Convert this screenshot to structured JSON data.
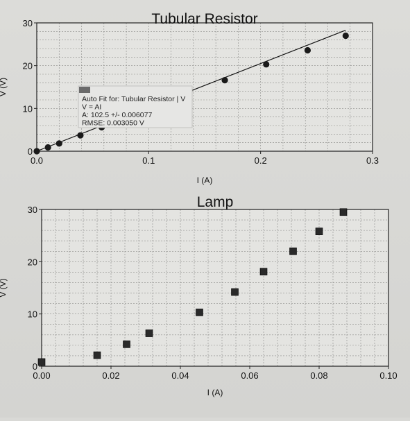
{
  "chart_data": [
    {
      "type": "scatter",
      "title": "Tubular Resistor",
      "xlabel": "I (A)",
      "ylabel": "V (V)",
      "xlim": [
        0.0,
        0.3
      ],
      "ylim": [
        0,
        30
      ],
      "x_ticks": [
        0.0,
        0.1,
        0.2,
        0.3
      ],
      "x_tick_labels": [
        "0.0",
        "0.1",
        "0.2",
        "0.3"
      ],
      "y_ticks": [
        0,
        10,
        20,
        30
      ],
      "y_tick_labels": [
        "0",
        "10",
        "20",
        "30"
      ],
      "grid": true,
      "marker": "circle",
      "series": [
        {
          "x": [
            0.0,
            0.01,
            0.02,
            0.039,
            0.058,
            0.168,
            0.205,
            0.242,
            0.276
          ],
          "y": [
            0.0,
            0.9,
            1.8,
            3.7,
            5.6,
            16.6,
            20.3,
            23.6,
            27.0
          ]
        }
      ],
      "fit_line": {
        "slope": 102.5,
        "intercept": 0.0,
        "x_range": [
          0.0,
          0.276
        ]
      },
      "fit_box": {
        "title": "Auto Fit for: Tubular Resistor | V",
        "equation": "V = AI",
        "param": "A: 102.5 +/- 0.006077",
        "rmse": "RMSE: 0.003050 V"
      }
    },
    {
      "type": "scatter",
      "title": "Lamp",
      "xlabel": "I (A)",
      "ylabel": "V (V)",
      "xlim": [
        0.0,
        0.1
      ],
      "ylim": [
        0,
        30
      ],
      "x_ticks": [
        0.0,
        0.02,
        0.04,
        0.06,
        0.08,
        0.1
      ],
      "x_tick_labels": [
        "0.00",
        "0.02",
        "0.04",
        "0.06",
        "0.08",
        "0.10"
      ],
      "y_ticks": [
        0,
        10,
        20,
        30
      ],
      "y_tick_labels": [
        "0",
        "10",
        "20",
        "30"
      ],
      "grid": true,
      "marker": "square",
      "series": [
        {
          "x": [
            0.0,
            0.016,
            0.0245,
            0.031,
            0.0455,
            0.0557,
            0.064,
            0.0725,
            0.08,
            0.087
          ],
          "y": [
            0.8,
            2.1,
            4.2,
            6.3,
            10.3,
            14.2,
            18.1,
            22.0,
            25.8,
            29.5
          ]
        }
      ]
    }
  ]
}
